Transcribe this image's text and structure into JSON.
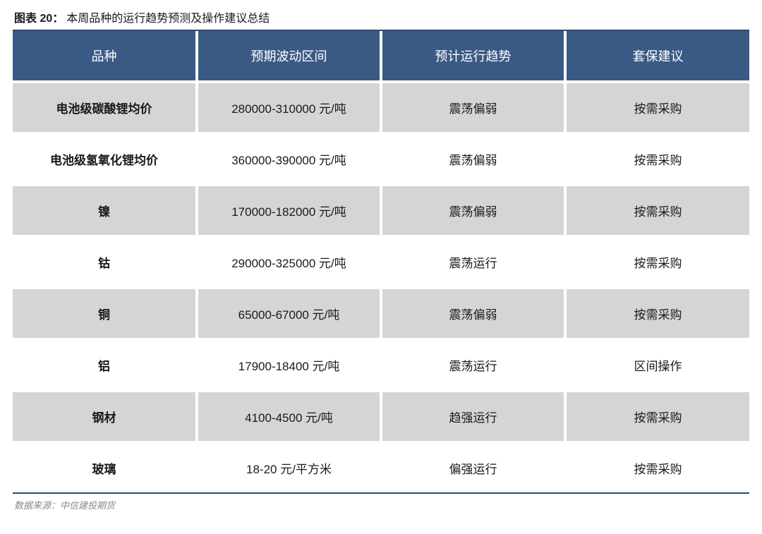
{
  "title": {
    "prefix": "图表 20：",
    "text": "本周品种的运行趋势预测及操作建议总结"
  },
  "table": {
    "type": "table",
    "header_bg": "#3a5a85",
    "header_fg": "#ffffff",
    "row_alt_bg": "#d5d5d5",
    "row_bg": "#ffffff",
    "border_color": "#2d4a6f",
    "gap_color": "#ffffff",
    "header_fontsize": 18,
    "cell_fontsize": 17,
    "col_widths_pct": [
      25,
      25,
      25,
      25
    ],
    "columns": [
      "品种",
      "预期波动区间",
      "预计运行趋势",
      "套保建议"
    ],
    "rows": [
      {
        "cells": [
          "电池级碳酸锂均价",
          "280000-310000 元/吨",
          "震荡偏弱",
          "按需采购"
        ],
        "shade": "gray"
      },
      {
        "cells": [
          "电池级氢氧化锂均价",
          "360000-390000 元/吨",
          "震荡偏弱",
          "按需采购"
        ],
        "shade": "white"
      },
      {
        "cells": [
          "镍",
          "170000-182000 元/吨",
          "震荡偏弱",
          "按需采购"
        ],
        "shade": "gray"
      },
      {
        "cells": [
          "钴",
          "290000-325000 元/吨",
          "震荡运行",
          "按需采购"
        ],
        "shade": "white"
      },
      {
        "cells": [
          "铜",
          "65000-67000 元/吨",
          "震荡偏弱",
          "按需采购"
        ],
        "shade": "gray"
      },
      {
        "cells": [
          "铝",
          "17900-18400 元/吨",
          "震荡运行",
          "区间操作"
        ],
        "shade": "white"
      },
      {
        "cells": [
          "钢材",
          "4100-4500 元/吨",
          "趋强运行",
          "按需采购"
        ],
        "shade": "gray"
      },
      {
        "cells": [
          "玻璃",
          "18-20 元/平方米",
          "偏强运行",
          "按需采购"
        ],
        "shade": "white"
      }
    ]
  },
  "source": "数据来源：中信建投期货"
}
